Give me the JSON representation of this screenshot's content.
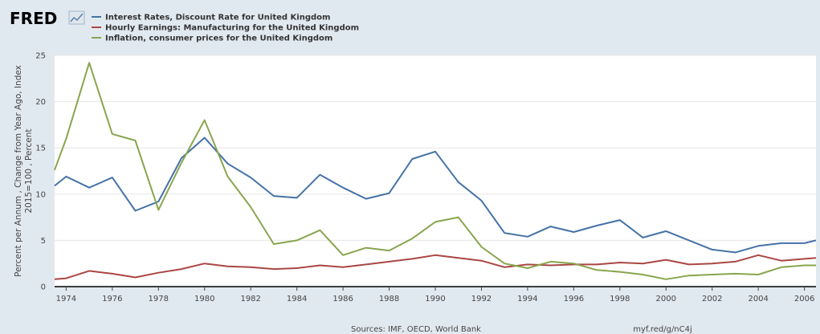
{
  "logo": {
    "text": "FRED"
  },
  "legend": [
    {
      "label": "Interest Rates, Discount Rate for United Kingdom",
      "color": "#4572a7"
    },
    {
      "label": "Hourly Earnings: Manufacturing for the United Kingdom",
      "color": "#aa4643"
    },
    {
      "label": "Inflation, consumer prices for the United Kingdom",
      "color": "#89a54e"
    }
  ],
  "ylabel_lines": [
    "Percent per Annum , Change from Year Ago, Index",
    "2015=100 , Percent"
  ],
  "footer": {
    "sources": "Sources: IMF, OECD, World Bank",
    "url": "myf.red/g/nC4j"
  },
  "chart_data": {
    "type": "line",
    "xlabel": "",
    "ylabel": "Percent per Annum , Change from Year Ago, Index 2015=100 , Percent",
    "xlim": [
      1973.5,
      2006.5
    ],
    "ylim": [
      0,
      25
    ],
    "yticks": [
      0,
      5,
      10,
      15,
      20,
      25
    ],
    "xticks": [
      1974,
      1976,
      1978,
      1980,
      1982,
      1984,
      1986,
      1988,
      1990,
      1992,
      1994,
      1996,
      1998,
      2000,
      2002,
      2004,
      2006
    ],
    "grid": true,
    "legend_position": "top-left",
    "x": [
      1973.5,
      1974,
      1975,
      1976,
      1977,
      1978,
      1979,
      1980,
      1981,
      1982,
      1983,
      1984,
      1985,
      1986,
      1987,
      1988,
      1989,
      1990,
      1991,
      1992,
      1993,
      1994,
      1995,
      1996,
      1997,
      1998,
      1999,
      2000,
      2001,
      2002,
      2003,
      2004,
      2005,
      2006,
      2006.5
    ],
    "series": [
      {
        "name": "Interest Rates, Discount Rate for United Kingdom",
        "color": "#4572a7",
        "values": [
          10.9,
          11.9,
          10.7,
          11.8,
          8.2,
          9.2,
          13.9,
          16.1,
          13.3,
          11.8,
          9.8,
          9.6,
          12.1,
          10.7,
          9.5,
          10.1,
          13.8,
          14.6,
          11.3,
          9.3,
          5.8,
          5.4,
          6.5,
          5.9,
          6.6,
          7.2,
          5.3,
          6.0,
          5.0,
          4.0,
          3.7,
          4.4,
          4.7,
          4.7,
          5.0
        ]
      },
      {
        "name": "Hourly Earnings: Manufacturing for the United Kingdom",
        "color": "#aa4643",
        "values": [
          0.8,
          0.9,
          1.7,
          1.4,
          1.0,
          1.5,
          1.9,
          2.5,
          2.2,
          2.1,
          1.9,
          2.0,
          2.3,
          2.1,
          2.4,
          2.7,
          3.0,
          3.4,
          3.1,
          2.8,
          2.1,
          2.4,
          2.3,
          2.4,
          2.4,
          2.6,
          2.5,
          2.9,
          2.4,
          2.5,
          2.7,
          3.4,
          2.8,
          3.0,
          3.1
        ]
      },
      {
        "name": "Inflation, consumer prices for the United Kingdom",
        "color": "#89a54e",
        "values": [
          12.6,
          16.0,
          24.2,
          16.5,
          15.8,
          8.3,
          13.4,
          18.0,
          11.9,
          8.6,
          4.6,
          5.0,
          6.1,
          3.4,
          4.2,
          3.9,
          5.2,
          7.0,
          7.5,
          4.3,
          2.5,
          2.0,
          2.7,
          2.5,
          1.8,
          1.6,
          1.3,
          0.8,
          1.2,
          1.3,
          1.4,
          1.3,
          2.1,
          2.3,
          2.3
        ]
      }
    ]
  }
}
